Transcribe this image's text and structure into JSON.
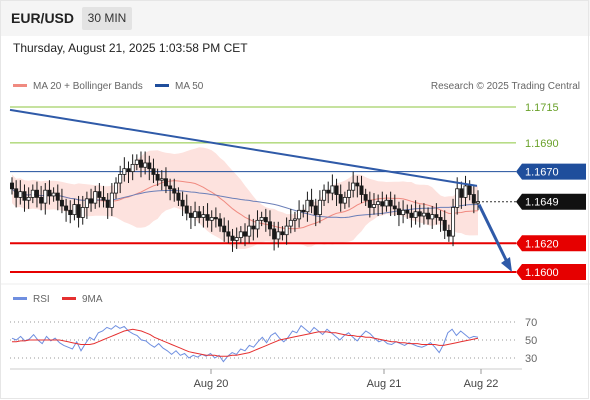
{
  "header": {
    "symbol": "EUR/USD",
    "timeframe": "30 MIN"
  },
  "timestamp": "Thursday, August 21, 2025 1:03:58 PM CET",
  "legend": {
    "bb_label": "MA 20 + Bollinger Bands",
    "ma50_label": "MA 50",
    "credit": "Research © 2025 Trading Central"
  },
  "rsi_legend": {
    "rsi_label": "RSI",
    "ma_label": "9MA"
  },
  "colors": {
    "resistance": "#8cc63f",
    "support": "#e60000",
    "pivot": "#1f4e9c",
    "trendline": "#2f5aa8",
    "bb_fill": "#fde2de",
    "ma20": "#f08a80",
    "ma50": "#6b7fb8",
    "candle": "#1a1a1a",
    "rsi": "#6f8fe0",
    "rsi_ma": "#e53030"
  },
  "chart_data": {
    "type": "candlestick",
    "instrument": "EUR/USD",
    "interval": "30 MIN",
    "ylim": [
      1.1585,
      1.1725
    ],
    "x_ticks": [
      "Aug 20",
      "Aug 21",
      "Aug 22"
    ],
    "current_price": "1.1649",
    "levels": [
      {
        "price": "1.1715",
        "kind": "resistance"
      },
      {
        "price": "1.1690",
        "kind": "resistance"
      },
      {
        "price": "1.1670",
        "kind": "pivot"
      },
      {
        "price": "1.1620",
        "kind": "support"
      },
      {
        "price": "1.1600",
        "kind": "support"
      }
    ],
    "trendline": {
      "from": 1.1713,
      "to": 1.166
    },
    "projection": {
      "from": 1.1647,
      "to": 1.16
    },
    "closes": [
      1.1658,
      1.1652,
      1.1656,
      1.165,
      1.1652,
      1.1657,
      1.1652,
      1.1648,
      1.1657,
      1.1653,
      1.1655,
      1.165,
      1.1646,
      1.1643,
      1.164,
      1.1647,
      1.1638,
      1.1645,
      1.1651,
      1.1648,
      1.1656,
      1.1652,
      1.165,
      1.1645,
      1.1655,
      1.1662,
      1.1668,
      1.1672,
      1.167,
      1.1675,
      1.1678,
      1.1673,
      1.1676,
      1.1672,
      1.1668,
      1.1664,
      1.1665,
      1.166,
      1.1658,
      1.1655,
      1.165,
      1.1646,
      1.1641,
      1.1638,
      1.1642,
      1.1638,
      1.164,
      1.1636,
      1.1638,
      1.1637,
      1.1632,
      1.1628,
      1.1625,
      1.1622,
      1.1624,
      1.1628,
      1.1625,
      1.1632,
      1.163,
      1.1636,
      1.1638,
      1.1635,
      1.163,
      1.1623,
      1.1628,
      1.1626,
      1.1632,
      1.1636,
      1.1637,
      1.1643,
      1.1642,
      1.165,
      1.1646,
      1.164,
      1.165,
      1.1657,
      1.1655,
      1.166,
      1.1654,
      1.1648,
      1.1652,
      1.1657,
      1.1662,
      1.166,
      1.1654,
      1.165,
      1.1645,
      1.1647,
      1.1649,
      1.1646,
      1.165,
      1.1646,
      1.1644,
      1.164,
      1.1643,
      1.1641,
      1.1638,
      1.1642,
      1.1639,
      1.1641,
      1.1637,
      1.164,
      1.1638,
      1.1636,
      1.1629,
      1.1625,
      1.1645,
      1.1658,
      1.1652,
      1.166,
      1.1654,
      1.1648,
      1.1649
    ],
    "rsi": {
      "ticks": [
        "70",
        "50",
        "30"
      ],
      "ylim": [
        20,
        80
      ],
      "rsi_values": [
        52,
        50,
        54,
        49,
        51,
        56,
        50,
        46,
        54,
        49,
        52,
        47,
        44,
        42,
        40,
        48,
        38,
        46,
        53,
        50,
        58,
        60,
        64,
        62,
        66,
        63,
        65,
        60,
        57,
        55,
        50,
        49,
        45,
        42,
        46,
        41,
        38,
        34,
        38,
        33,
        35,
        30,
        33,
        31,
        34,
        32,
        35,
        30,
        33,
        26,
        32,
        36,
        34,
        40,
        38,
        44,
        42,
        48,
        53,
        47,
        55,
        58,
        52,
        48,
        53,
        60,
        58,
        66,
        62,
        58,
        64,
        60,
        56,
        62,
        58,
        54,
        50,
        55,
        58,
        53,
        49,
        55,
        60,
        57,
        52,
        48,
        50,
        46,
        45,
        48,
        46,
        44,
        47,
        45,
        43,
        42,
        44,
        47,
        42,
        36,
        45,
        58,
        62,
        55,
        60,
        56,
        52,
        54,
        53
      ],
      "ma_values": [
        48,
        48,
        49,
        49,
        50,
        50,
        50,
        50,
        50,
        50,
        50,
        50,
        49,
        48,
        47,
        46,
        45,
        45,
        45,
        46,
        48,
        50,
        52,
        54,
        56,
        58,
        60,
        61,
        62,
        61,
        60,
        58,
        56,
        53,
        51,
        49,
        47,
        45,
        43,
        41,
        39,
        37,
        36,
        35,
        34,
        33,
        33,
        33,
        32,
        32,
        32,
        33,
        33,
        34,
        35,
        36,
        38,
        40,
        42,
        44,
        46,
        48,
        50,
        51,
        52,
        53,
        54,
        55,
        56,
        57,
        58,
        59,
        59,
        59,
        58,
        58,
        57,
        56,
        55,
        55,
        54,
        54,
        53,
        53,
        52,
        51,
        50,
        49,
        48,
        48,
        47,
        47,
        46,
        46,
        46,
        45,
        45,
        45,
        45,
        44,
        44,
        45,
        46,
        47,
        48,
        49,
        50,
        51,
        52
      ]
    }
  }
}
